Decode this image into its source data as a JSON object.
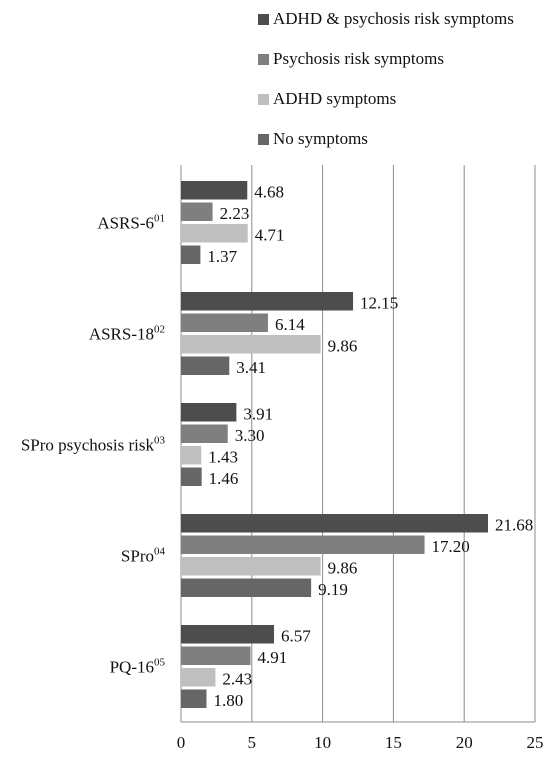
{
  "chart_data": {
    "type": "bar",
    "orientation": "horizontal",
    "categories": [
      {
        "label": "ASRS-6",
        "sup": "01"
      },
      {
        "label": "ASRS-18",
        "sup": "02"
      },
      {
        "label": "SPro psychosis risk",
        "sup": "03"
      },
      {
        "label": "SPro",
        "sup": "04"
      },
      {
        "label": "PQ-16",
        "sup": "05"
      }
    ],
    "series": [
      {
        "name": "ADHD & psychosis risk symptoms",
        "color": "#4d4d4d",
        "values": [
          4.68,
          12.15,
          3.91,
          21.68,
          6.57
        ],
        "labels": [
          "4.68",
          "12.15",
          "3.91",
          "21.68",
          "6.57"
        ]
      },
      {
        "name": "Psychosis risk symptoms",
        "color": "#7f7f7f",
        "values": [
          2.23,
          6.14,
          3.3,
          17.2,
          4.91
        ],
        "labels": [
          "2.23",
          "6.14",
          "3.30",
          "17.20",
          "4.91"
        ]
      },
      {
        "name": "ADHD symptoms",
        "color": "#bfbfbf",
        "values": [
          4.71,
          9.86,
          1.43,
          9.86,
          2.43
        ],
        "labels": [
          "4.71",
          "9.86",
          "1.43",
          "9.86",
          "2.43"
        ]
      },
      {
        "name": "No symptoms",
        "color": "#666666",
        "values": [
          1.37,
          3.41,
          1.46,
          9.19,
          1.8
        ],
        "labels": [
          "1.37",
          "3.41",
          "1.46",
          "9.19",
          "1.80"
        ]
      }
    ],
    "xlim": [
      0,
      25
    ],
    "x_ticks": [
      "0",
      "5",
      "10",
      "15",
      "20",
      "25"
    ],
    "grid": "vertical",
    "legend_position": "top"
  }
}
